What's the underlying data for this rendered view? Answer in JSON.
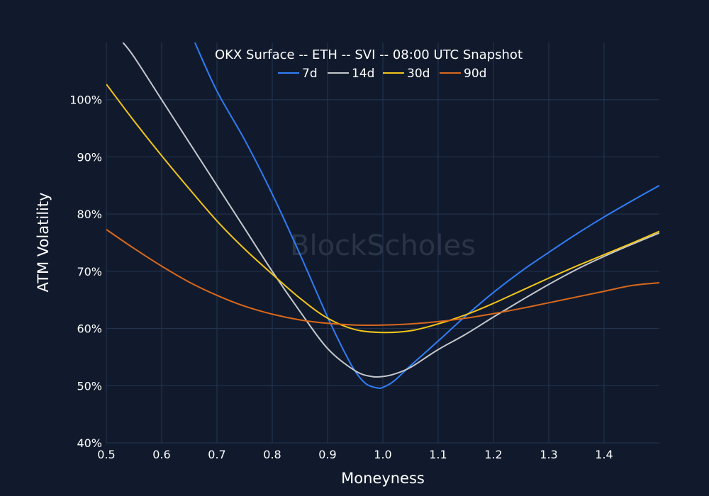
{
  "chart_data": {
    "type": "line",
    "title": "OKX Surface -- ETH -- SVI -- 08:00 UTC Snapshot",
    "xlabel": "Moneyness",
    "ylabel": "ATM Volatility",
    "xlim": [
      0.5,
      1.5
    ],
    "ylim": [
      40,
      110
    ],
    "x_ticks": [
      0.5,
      0.6,
      0.7,
      0.8,
      0.9,
      1.0,
      1.1,
      1.2,
      1.3,
      1.4
    ],
    "x_tick_labels": [
      "0.5",
      "0.6",
      "0.7",
      "0.8",
      "0.9",
      "1.0",
      "1.1",
      "1.2",
      "1.3",
      "1.4"
    ],
    "y_ticks": [
      40,
      50,
      60,
      70,
      80,
      90,
      100
    ],
    "y_tick_labels": [
      "40%",
      "50%",
      "60%",
      "70%",
      "80%",
      "90%",
      "100%"
    ],
    "grid": true,
    "legend_position": "top-center",
    "watermark": "BlockScholes",
    "series": [
      {
        "name": "7d",
        "color": "#2f7df6",
        "x": [
          0.66,
          0.7,
          0.75,
          0.8,
          0.85,
          0.9,
          0.93,
          0.95,
          0.97,
          0.99,
          1.0,
          1.02,
          1.05,
          1.1,
          1.15,
          1.2,
          1.25,
          1.3,
          1.35,
          1.4,
          1.45,
          1.5
        ],
        "y": [
          110,
          101.5,
          93,
          83.5,
          73,
          62,
          56,
          52.5,
          50.3,
          49.6,
          49.7,
          50.8,
          53.5,
          57.8,
          62.2,
          66.3,
          70,
          73.3,
          76.5,
          79.5,
          82.3,
          85
        ]
      },
      {
        "name": "14d",
        "color": "#c4c7cc",
        "x": [
          0.53,
          0.55,
          0.6,
          0.65,
          0.7,
          0.75,
          0.8,
          0.85,
          0.9,
          0.95,
          0.98,
          1.0,
          1.02,
          1.05,
          1.1,
          1.15,
          1.2,
          1.25,
          1.3,
          1.35,
          1.4,
          1.45,
          1.5
        ],
        "y": [
          110,
          107.5,
          100,
          92.5,
          85,
          77.5,
          70,
          63,
          56.5,
          52.6,
          51.6,
          51.6,
          52,
          53.2,
          56.3,
          59,
          62,
          64.9,
          67.7,
          70.3,
          72.6,
          74.7,
          76.7
        ]
      },
      {
        "name": "30d",
        "color": "#f2c51a",
        "x": [
          0.5,
          0.55,
          0.6,
          0.65,
          0.7,
          0.75,
          0.8,
          0.85,
          0.9,
          0.95,
          1.0,
          1.05,
          1.1,
          1.15,
          1.2,
          1.25,
          1.3,
          1.35,
          1.4,
          1.45,
          1.5
        ],
        "y": [
          102.7,
          96.3,
          90.2,
          84.4,
          78.8,
          73.9,
          69.5,
          65.3,
          61.8,
          59.8,
          59.3,
          59.6,
          60.8,
          62.4,
          64.4,
          66.6,
          68.8,
          70.9,
          72.9,
          74.9,
          77
        ]
      },
      {
        "name": "90d",
        "color": "#d9681c",
        "x": [
          0.5,
          0.55,
          0.6,
          0.65,
          0.7,
          0.75,
          0.8,
          0.85,
          0.9,
          0.95,
          1.0,
          1.05,
          1.1,
          1.15,
          1.2,
          1.25,
          1.3,
          1.35,
          1.4,
          1.45,
          1.5
        ],
        "y": [
          77.3,
          74,
          70.9,
          68.1,
          65.8,
          63.9,
          62.5,
          61.5,
          60.9,
          60.6,
          60.6,
          60.8,
          61.2,
          61.8,
          62.6,
          63.5,
          64.5,
          65.5,
          66.5,
          67.5,
          68
        ]
      }
    ]
  }
}
